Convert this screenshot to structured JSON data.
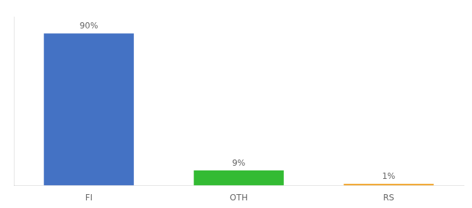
{
  "chart_data": {
    "type": "bar",
    "categories": [
      "FI",
      "OTH",
      "RS"
    ],
    "values": [
      90,
      9,
      1
    ],
    "value_labels": [
      "90%",
      "9%",
      "1%"
    ],
    "data_labels": true,
    "colors": [
      "#4472c4",
      "#33bb33",
      "#f0a020"
    ],
    "ylim": [
      0,
      100
    ],
    "tick_labels": "x",
    "grid": false
  }
}
